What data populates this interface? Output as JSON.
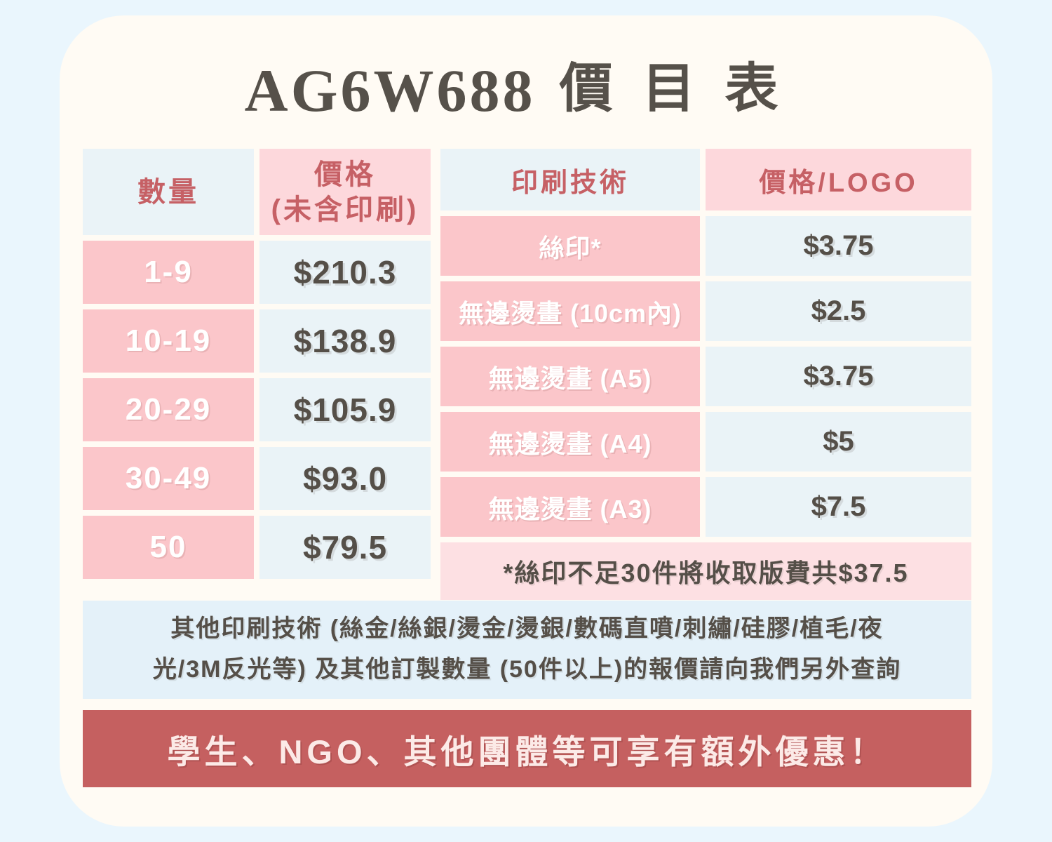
{
  "title": {
    "code": "AG6W688",
    "name": "價目表"
  },
  "quantity_table": {
    "headers": {
      "quantity": "數量",
      "price_line1": "價格",
      "price_line2": "(未含印刷)"
    },
    "rows": [
      {
        "quantity": "1-9",
        "price": "$210.3"
      },
      {
        "quantity": "10-19",
        "price": "$138.9"
      },
      {
        "quantity": "20-29",
        "price": "$105.9"
      },
      {
        "quantity": "30-49",
        "price": "$93.0"
      },
      {
        "quantity": "50",
        "price": "$79.5"
      }
    ]
  },
  "printing_table": {
    "headers": {
      "technique": "印刷技術",
      "price": "價格/LOGO"
    },
    "rows": [
      {
        "technique": "絲印*",
        "price": "$3.75"
      },
      {
        "technique": "無邊燙畫 (10cm內)",
        "price": "$2.5"
      },
      {
        "technique": "無邊燙畫 (A5)",
        "price": "$3.75"
      },
      {
        "technique": "無邊燙畫 (A4)",
        "price": "$5"
      },
      {
        "technique": "無邊燙畫 (A3)",
        "price": "$7.5"
      }
    ],
    "footnote": "*絲印不足30件將收取版費共$37.5"
  },
  "other_note": {
    "lines": [
      "其他印刷技術 (絲金/絲銀/燙金/燙銀/數碼直噴/刺繡/硅膠/植毛/夜",
      "光/3M反光等) 及其他訂製數量 (50件以上)的報價請向我們另外查詢"
    ]
  },
  "promo_banner": {
    "text": "學生、NGO、其他團體等可享有額外優惠！"
  },
  "colors": {
    "page_background": "#EAF6FD",
    "card_background": "#FFFBF4",
    "cell_blue": "#EAF3F7",
    "row_pink": "#FBC6CA",
    "header_pink": "#FDD8DC",
    "footnote_pink": "#FDE0E3",
    "note_blue": "#E4F1F9",
    "banner_red": "#C56060",
    "accent_red_text": "#C66065",
    "dark_text": "#554F48",
    "white_text": "#FFFFFF"
  }
}
